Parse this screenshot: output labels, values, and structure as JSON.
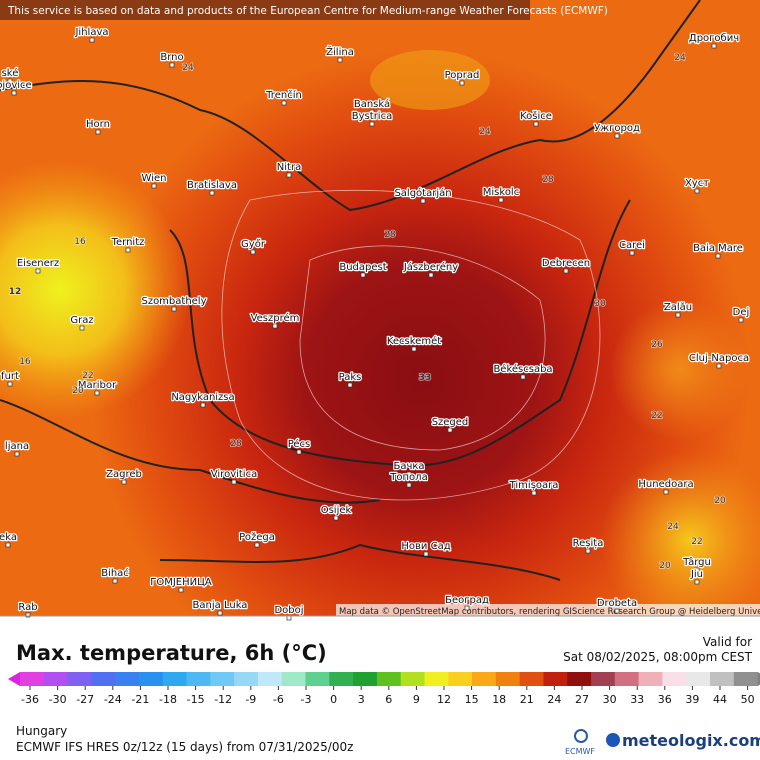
{
  "attribution_top": "This service is based on data and products of the European Centre for Medium-range Weather Forecasts (ECMWF)",
  "attribution_bottom": "Map data © OpenStreetMap contributors, rendering GIScience Research Group @ Heidelberg University",
  "cities": [
    "Jihlava",
    "Brno",
    "Žilina",
    "Poprad",
    "Дрогобич",
    "Trenčín",
    "Banská",
    "Bystrica",
    "Košice",
    "Ужгород",
    "Horn",
    "Nitra",
    "Wien",
    "Bratislava",
    "Salgótarján",
    "Miskolc",
    "Хуст",
    "Ternitz",
    "Győr",
    "Carei",
    "Baia Mare",
    "Eisenerz",
    "Budapest",
    "Jászberény",
    "Debrecen",
    "Szombathely",
    "Graz",
    "Veszprém",
    "Zalău",
    "Dej",
    "Kecskemét",
    "Cluj-Napoca",
    "Paks",
    "Békéscsaba",
    "Maribor",
    "Nagykanizsa",
    "Szeged",
    "ljana",
    "Pécs",
    "Бачка",
    "Топола",
    "Zagreb",
    "Virovitica",
    "Timișoara",
    "Hunedoara",
    "Osijek",
    "Požega",
    "Reșița",
    "Нови Сад",
    "Târgu",
    "Jiu",
    "ГОМЈЕНИЦА",
    "Bihać",
    "Banja Luka",
    "Doboj",
    "Београд",
    "Drobeta",
    "ské",
    "ojovice",
    "furt",
    "eka",
    "Rab"
  ],
  "contour_labels": [
    24,
    24,
    28,
    24,
    16,
    12,
    16,
    20,
    22,
    28,
    33,
    26,
    22,
    28,
    24,
    22,
    20,
    20,
    30
  ],
  "legend": {
    "title": "Max. temperature, 6h (°C)",
    "valid_label": "Valid for",
    "valid_time": "Sat 08/02/2025, 08:00pm CEST",
    "ticks": [
      -36,
      -30,
      -27,
      -24,
      -21,
      -18,
      -15,
      -12,
      -9,
      -6,
      -3,
      0,
      3,
      6,
      9,
      12,
      15,
      18,
      21,
      24,
      27,
      30,
      33,
      36,
      39,
      44,
      50
    ]
  },
  "footer": {
    "region": "Hungary",
    "model": "ECMWF IFS HRES 0z/12z (15 days) from 07/31/2025/00z",
    "ecmwf_logo": "ECMWF",
    "brand": "meteologix.com"
  }
}
